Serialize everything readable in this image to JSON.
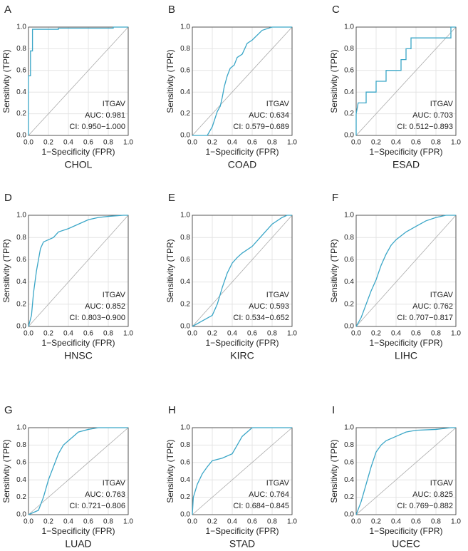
{
  "chart_data": [
    {
      "type": "line",
      "panel_label": "A",
      "title": "CHOL",
      "x_label": "1−Specificity (FPR)",
      "y_label": "Sensitivity (TPR)",
      "annotations": [
        "ITGAV",
        "AUC: 0.981",
        "CI: 0.950−1.000"
      ],
      "color": "#3aa6c7",
      "grid": true,
      "x": [
        0,
        0,
        0.02,
        0.02,
        0.04,
        0.04,
        0.3,
        0.3,
        0.85,
        0.85,
        1
      ],
      "values": [
        0,
        0.55,
        0.55,
        0.78,
        0.78,
        0.98,
        0.98,
        0.99,
        0.99,
        1,
        1
      ],
      "xlim": [
        0,
        1
      ],
      "ylim": [
        0,
        1
      ],
      "xticks": [
        {
          "value": 0,
          "label": "0.0"
        },
        0.2,
        0.4,
        0.6,
        0.8,
        {
          "value": 1,
          "label": "1.0"
        }
      ],
      "yticks": [
        {
          "value": 0,
          "label": "0.0"
        },
        0.2,
        0.4,
        0.6,
        0.8,
        {
          "value": 1,
          "label": "1.0"
        }
      ]
    },
    {
      "type": "line",
      "panel_label": "B",
      "title": "COAD",
      "x_label": "1−Specificity (FPR)",
      "y_label": "Sensitivity (TPR)",
      "annotations": [
        "ITGAV",
        "AUC: 0.634",
        "CI: 0.579−0.689"
      ],
      "color": "#3aa6c7",
      "grid": true,
      "x": [
        0,
        0.15,
        0.2,
        0.25,
        0.28,
        0.3,
        0.32,
        0.35,
        0.38,
        0.42,
        0.45,
        0.5,
        0.55,
        0.6,
        0.7,
        0.8,
        1
      ],
      "values": [
        0,
        0,
        0.08,
        0.22,
        0.27,
        0.35,
        0.45,
        0.55,
        0.62,
        0.65,
        0.72,
        0.75,
        0.85,
        0.88,
        0.97,
        1,
        1
      ],
      "xlim": [
        0,
        1
      ],
      "ylim": [
        0,
        1
      ],
      "xticks": [
        {
          "value": 0,
          "label": "0.0"
        },
        0.2,
        0.4,
        0.6,
        0.8,
        {
          "value": 1,
          "label": "1.0"
        }
      ],
      "yticks": [
        {
          "value": 0,
          "label": "0.0"
        },
        0.2,
        0.4,
        0.6,
        0.8,
        {
          "value": 1,
          "label": "1.0"
        }
      ]
    },
    {
      "type": "line",
      "panel_label": "C",
      "title": "ESAD",
      "x_label": "1−Specificity (FPR)",
      "y_label": "Sensitivity (TPR)",
      "annotations": [
        "ITGAV",
        "AUC: 0.703",
        "CI: 0.512−0.893"
      ],
      "color": "#3aa6c7",
      "grid": true,
      "x": [
        0,
        0,
        0.02,
        0.1,
        0.1,
        0.2,
        0.2,
        0.3,
        0.3,
        0.45,
        0.45,
        0.5,
        0.5,
        0.55,
        0.55,
        0.95,
        0.95,
        1
      ],
      "values": [
        0,
        0.2,
        0.3,
        0.3,
        0.4,
        0.4,
        0.5,
        0.5,
        0.6,
        0.6,
        0.7,
        0.7,
        0.8,
        0.8,
        0.9,
        0.9,
        1,
        1
      ],
      "xlim": [
        0,
        1
      ],
      "ylim": [
        0,
        1
      ],
      "xticks": [
        {
          "value": 0,
          "label": "0.0"
        },
        0.2,
        0.4,
        0.6,
        0.8,
        {
          "value": 1,
          "label": "1.0"
        }
      ],
      "yticks": [
        {
          "value": 0,
          "label": "0.0"
        },
        0.2,
        0.4,
        0.6,
        0.8,
        {
          "value": 1,
          "label": "1.0"
        }
      ]
    },
    {
      "type": "line",
      "panel_label": "D",
      "title": "HNSC",
      "x_label": "1−Specificity (FPR)",
      "y_label": "Sensitivity (TPR)",
      "annotations": [
        "ITGAV",
        "AUC: 0.852",
        "CI: 0.803−0.900"
      ],
      "color": "#3aa6c7",
      "grid": true,
      "x": [
        0,
        0.03,
        0.05,
        0.08,
        0.1,
        0.12,
        0.15,
        0.2,
        0.25,
        0.3,
        0.4,
        0.5,
        0.6,
        0.7,
        0.8,
        0.95,
        1
      ],
      "values": [
        0,
        0.1,
        0.3,
        0.5,
        0.6,
        0.7,
        0.76,
        0.78,
        0.8,
        0.85,
        0.88,
        0.92,
        0.96,
        0.98,
        0.99,
        1,
        1
      ],
      "xlim": [
        0,
        1
      ],
      "ylim": [
        0,
        1
      ],
      "xticks": [
        {
          "value": 0,
          "label": "0.0"
        },
        0.2,
        0.4,
        0.6,
        0.8,
        {
          "value": 1,
          "label": "1.0"
        }
      ],
      "yticks": [
        {
          "value": 0,
          "label": "0.0"
        },
        0.2,
        0.4,
        0.6,
        0.8,
        {
          "value": 1,
          "label": "1.0"
        }
      ]
    },
    {
      "type": "line",
      "panel_label": "E",
      "title": "KIRC",
      "x_label": "1−Specificity (FPR)",
      "y_label": "Sensitivity (TPR)",
      "annotations": [
        "ITGAV",
        "AUC: 0.593",
        "CI: 0.534−0.652"
      ],
      "color": "#3aa6c7",
      "grid": true,
      "x": [
        0,
        0.1,
        0.2,
        0.25,
        0.3,
        0.35,
        0.4,
        0.45,
        0.5,
        0.6,
        0.7,
        0.8,
        0.9,
        0.95,
        1
      ],
      "values": [
        0,
        0.05,
        0.1,
        0.2,
        0.35,
        0.48,
        0.57,
        0.62,
        0.66,
        0.72,
        0.82,
        0.92,
        0.98,
        1,
        1
      ],
      "xlim": [
        0,
        1
      ],
      "ylim": [
        0,
        1
      ],
      "xticks": [
        {
          "value": 0,
          "label": "0.0"
        },
        0.2,
        0.4,
        0.6,
        0.8,
        {
          "value": 1,
          "label": "1.0"
        }
      ],
      "yticks": [
        {
          "value": 0,
          "label": "0.0"
        },
        0.2,
        0.4,
        0.6,
        0.8,
        {
          "value": 1,
          "label": "1.0"
        }
      ]
    },
    {
      "type": "line",
      "panel_label": "F",
      "title": "LIHC",
      "x_label": "1−Specificity (FPR)",
      "y_label": "Sensitivity (TPR)",
      "annotations": [
        "ITGAV",
        "AUC: 0.762",
        "CI: 0.707−0.817"
      ],
      "color": "#3aa6c7",
      "grid": true,
      "x": [
        0,
        0.05,
        0.1,
        0.15,
        0.2,
        0.25,
        0.3,
        0.35,
        0.4,
        0.5,
        0.6,
        0.7,
        0.8,
        0.9,
        1
      ],
      "values": [
        0,
        0.08,
        0.2,
        0.32,
        0.42,
        0.55,
        0.65,
        0.73,
        0.78,
        0.85,
        0.9,
        0.95,
        0.98,
        1,
        1
      ],
      "xlim": [
        0,
        1
      ],
      "ylim": [
        0,
        1
      ],
      "xticks": [
        {
          "value": 0,
          "label": "0.0"
        },
        0.2,
        0.4,
        0.6,
        0.8,
        {
          "value": 1,
          "label": "1.0"
        }
      ],
      "yticks": [
        {
          "value": 0,
          "label": "0.0"
        },
        0.2,
        0.4,
        0.6,
        0.8,
        {
          "value": 1,
          "label": "1.0"
        }
      ]
    },
    {
      "type": "line",
      "panel_label": "G",
      "title": "LUAD",
      "x_label": "1−Specificity (FPR)",
      "y_label": "Sensitivity (TPR)",
      "annotations": [
        "ITGAV",
        "AUC: 0.763",
        "CI: 0.721−0.806"
      ],
      "color": "#3aa6c7",
      "grid": true,
      "x": [
        0,
        0.1,
        0.15,
        0.2,
        0.25,
        0.3,
        0.35,
        0.4,
        0.45,
        0.5,
        0.6,
        0.7,
        1
      ],
      "values": [
        0,
        0.05,
        0.2,
        0.4,
        0.55,
        0.7,
        0.8,
        0.85,
        0.9,
        0.95,
        0.98,
        1,
        1
      ],
      "xlim": [
        0,
        1
      ],
      "ylim": [
        0,
        1
      ],
      "xticks": [
        {
          "value": 0,
          "label": "0.0"
        },
        0.2,
        0.4,
        0.6,
        0.8,
        {
          "value": 1,
          "label": "1.0"
        }
      ],
      "yticks": [
        {
          "value": 0,
          "label": "0.0"
        },
        0.2,
        0.4,
        0.6,
        0.8,
        {
          "value": 1,
          "label": "1.0"
        }
      ]
    },
    {
      "type": "line",
      "panel_label": "H",
      "title": "STAD",
      "x_label": "1−Specificity (FPR)",
      "y_label": "Sensitivity (TPR)",
      "annotations": [
        "ITGAV",
        "AUC: 0.764",
        "CI: 0.684−0.845"
      ],
      "color": "#3aa6c7",
      "grid": true,
      "x": [
        0,
        0.01,
        0.05,
        0.1,
        0.15,
        0.2,
        0.3,
        0.4,
        0.45,
        0.5,
        0.55,
        0.6,
        1
      ],
      "values": [
        0,
        0.2,
        0.35,
        0.47,
        0.55,
        0.62,
        0.65,
        0.7,
        0.8,
        0.9,
        0.95,
        1,
        1
      ],
      "xlim": [
        0,
        1
      ],
      "ylim": [
        0,
        1
      ],
      "xticks": [
        {
          "value": 0,
          "label": "0.0"
        },
        0.2,
        0.4,
        0.6,
        0.8,
        {
          "value": 1,
          "label": "1.0"
        }
      ],
      "yticks": [
        {
          "value": 0,
          "label": "0.0"
        },
        0.2,
        0.4,
        0.6,
        0.8,
        {
          "value": 1,
          "label": "1.0"
        }
      ]
    },
    {
      "type": "line",
      "panel_label": "I",
      "title": "UCEC",
      "x_label": "1−Specificity (FPR)",
      "y_label": "Sensitivity (TPR)",
      "annotations": [
        "ITGAV",
        "AUC: 0.825",
        "CI: 0.769−0.882"
      ],
      "color": "#3aa6c7",
      "grid": true,
      "x": [
        0,
        0.05,
        0.1,
        0.15,
        0.2,
        0.25,
        0.3,
        0.4,
        0.5,
        0.6,
        0.8,
        0.95,
        1
      ],
      "values": [
        0,
        0.15,
        0.35,
        0.55,
        0.72,
        0.8,
        0.85,
        0.9,
        0.95,
        0.97,
        0.98,
        1,
        1
      ],
      "xlim": [
        0,
        1
      ],
      "ylim": [
        0,
        1
      ],
      "xticks": [
        {
          "value": 0,
          "label": "0.0"
        },
        0.2,
        0.4,
        0.6,
        0.8,
        {
          "value": 1,
          "label": "1.0"
        }
      ],
      "yticks": [
        {
          "value": 0,
          "label": "0.0"
        },
        0.2,
        0.4,
        0.6,
        0.8,
        {
          "value": 1,
          "label": "1.0"
        }
      ]
    }
  ]
}
